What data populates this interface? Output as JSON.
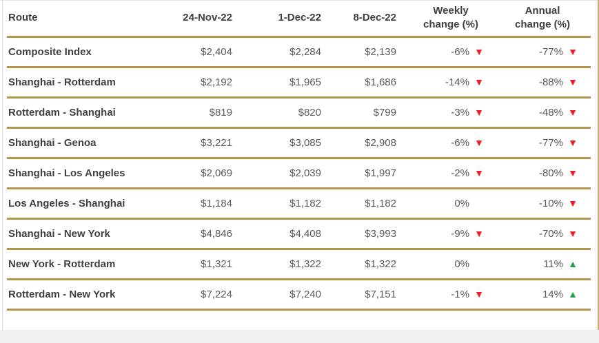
{
  "chart_data": {
    "type": "table",
    "title": "",
    "columns": [
      {
        "key": "route",
        "label": "Route"
      },
      {
        "key": "price_24_nov_22",
        "label": "24-Nov-22"
      },
      {
        "key": "price_1_dec_22",
        "label": "1-Dec-22"
      },
      {
        "key": "price_8_dec_22",
        "label": "8-Dec-22"
      },
      {
        "key": "weekly_change",
        "label": "Weekly change (%)"
      },
      {
        "key": "annual_change",
        "label": "Annual change (%)"
      }
    ],
    "rows": [
      {
        "route": "Composite Index",
        "price_24_nov_22": "$2,404",
        "price_1_dec_22": "$2,284",
        "price_8_dec_22": "$2,139",
        "weekly_change": "-6%",
        "weekly_direction": "down",
        "annual_change": "-77%",
        "annual_direction": "down"
      },
      {
        "route": "Shanghai - Rotterdam",
        "price_24_nov_22": "$2,192",
        "price_1_dec_22": "$1,965",
        "price_8_dec_22": "$1,686",
        "weekly_change": "-14%",
        "weekly_direction": "down",
        "annual_change": "-88%",
        "annual_direction": "down"
      },
      {
        "route": "Rotterdam - Shanghai",
        "price_24_nov_22": "$819",
        "price_1_dec_22": "$820",
        "price_8_dec_22": "$799",
        "weekly_change": "-3%",
        "weekly_direction": "down",
        "annual_change": "-48%",
        "annual_direction": "down"
      },
      {
        "route": "Shanghai - Genoa",
        "price_24_nov_22": "$3,221",
        "price_1_dec_22": "$3,085",
        "price_8_dec_22": "$2,908",
        "weekly_change": "-6%",
        "weekly_direction": "down",
        "annual_change": "-77%",
        "annual_direction": "down"
      },
      {
        "route": "Shanghai - Los Angeles",
        "price_24_nov_22": "$2,069",
        "price_1_dec_22": "$2,039",
        "price_8_dec_22": "$1,997",
        "weekly_change": "-2%",
        "weekly_direction": "down",
        "annual_change": "-80%",
        "annual_direction": "down"
      },
      {
        "route": "Los Angeles - Shanghai",
        "price_24_nov_22": "$1,184",
        "price_1_dec_22": "$1,182",
        "price_8_dec_22": "$1,182",
        "weekly_change": "0%",
        "weekly_direction": "none",
        "annual_change": "-10%",
        "annual_direction": "down"
      },
      {
        "route": "Shanghai - New York",
        "price_24_nov_22": "$4,846",
        "price_1_dec_22": "$4,408",
        "price_8_dec_22": "$3,993",
        "weekly_change": "-9%",
        "weekly_direction": "down",
        "annual_change": "-70%",
        "annual_direction": "down"
      },
      {
        "route": "New York - Rotterdam",
        "price_24_nov_22": "$1,321",
        "price_1_dec_22": "$1,322",
        "price_8_dec_22": "$1,322",
        "weekly_change": "0%",
        "weekly_direction": "none",
        "annual_change": "11%",
        "annual_direction": "up"
      },
      {
        "route": "Rotterdam - New York",
        "price_24_nov_22": "$7,224",
        "price_1_dec_22": "$7,240",
        "price_8_dec_22": "$7,151",
        "weekly_change": "-1%",
        "weekly_direction": "down",
        "annual_change": "14%",
        "annual_direction": "up"
      }
    ],
    "layout": {
      "grid": "gold horizontal rules between rows",
      "legend": "none"
    }
  },
  "icons": {
    "down_glyph": "▼",
    "up_glyph": "▲"
  },
  "colors": {
    "gold_border": "#b5964b",
    "text_dark": "#404040",
    "text_value": "#595959",
    "red": "#ed1b24",
    "green": "#1fa04d",
    "footer_gray": "#eef0f2"
  }
}
